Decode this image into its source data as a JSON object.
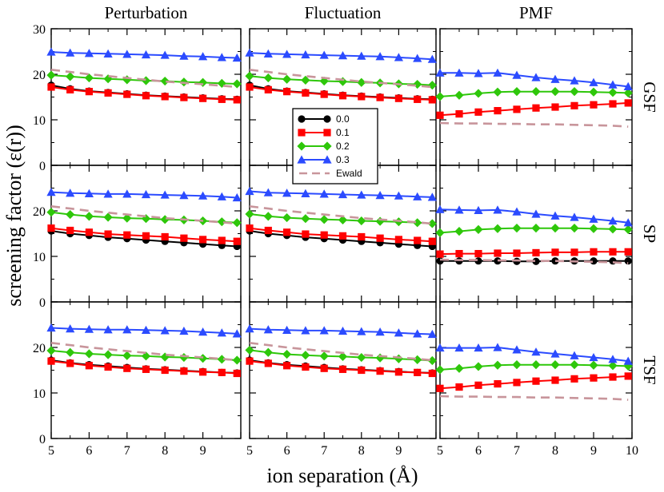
{
  "chart_data": {
    "type": "line",
    "xlabel": "ion separation (Å)",
    "ylabel": "screening factor (ε(r))",
    "columns": [
      "Perturbation",
      "Fluctuation",
      "PMF"
    ],
    "rows": [
      "GSF",
      "SP",
      "TSF"
    ],
    "xlim": [
      5,
      10
    ],
    "ylim": [
      0,
      30
    ],
    "xticks": [
      5,
      6,
      7,
      8,
      9,
      10
    ],
    "yticks": [
      0,
      10,
      20,
      30
    ],
    "legend": {
      "position": "center",
      "entries": [
        {
          "name": "0.0",
          "color": "#000000",
          "marker": "circle",
          "dash": false
        },
        {
          "name": "0.1",
          "color": "#ff0000",
          "marker": "square",
          "dash": false
        },
        {
          "name": "0.2",
          "color": "#2ec70a",
          "marker": "diamond",
          "dash": false
        },
        {
          "name": "0.3",
          "color": "#2b4bff",
          "marker": "triangle",
          "dash": false
        },
        {
          "name": "Ewald",
          "color": "#c8959b",
          "marker": "none",
          "dash": true
        }
      ]
    },
    "x": [
      5.0,
      5.5,
      6.0,
      6.5,
      7.0,
      7.5,
      8.0,
      8.5,
      9.0,
      9.5,
      9.9
    ],
    "panels": [
      {
        "row": "GSF",
        "column": "Perturbation",
        "series": [
          {
            "name": "0.0",
            "values": [
              17.6,
              16.8,
              16.3,
              16.0,
              15.7,
              15.4,
              15.2,
              15.0,
              14.8,
              14.6,
              14.5
            ]
          },
          {
            "name": "0.1",
            "values": [
              17.2,
              16.6,
              16.2,
              15.9,
              15.6,
              15.3,
              15.1,
              14.9,
              14.7,
              14.5,
              14.4
            ]
          },
          {
            "name": "0.2",
            "values": [
              19.8,
              19.5,
              19.2,
              19.0,
              18.8,
              18.6,
              18.5,
              18.3,
              18.2,
              18.0,
              17.9
            ]
          },
          {
            "name": "0.3",
            "values": [
              24.9,
              24.7,
              24.6,
              24.5,
              24.4,
              24.3,
              24.2,
              24.0,
              23.9,
              23.7,
              23.6
            ]
          },
          {
            "name": "Ewald",
            "values": [
              21.0,
              20.5,
              20.0,
              19.6,
              19.2,
              18.8,
              18.4,
              18.1,
              17.8,
              17.5,
              17.2
            ]
          }
        ]
      },
      {
        "row": "GSF",
        "column": "Fluctuation",
        "series": [
          {
            "name": "0.0",
            "values": [
              17.6,
              16.8,
              16.3,
              16.0,
              15.7,
              15.4,
              15.2,
              15.0,
              14.8,
              14.6,
              14.5
            ]
          },
          {
            "name": "0.1",
            "values": [
              17.2,
              16.6,
              16.2,
              15.9,
              15.6,
              15.3,
              15.1,
              14.9,
              14.7,
              14.5,
              14.4
            ]
          },
          {
            "name": "0.2",
            "values": [
              19.6,
              19.2,
              18.9,
              18.7,
              18.5,
              18.4,
              18.2,
              18.1,
              17.9,
              17.8,
              17.6
            ]
          },
          {
            "name": "0.3",
            "values": [
              24.7,
              24.5,
              24.4,
              24.3,
              24.2,
              24.1,
              24.0,
              23.9,
              23.7,
              23.5,
              23.3
            ]
          },
          {
            "name": "Ewald",
            "values": [
              21.0,
              20.5,
              20.0,
              19.6,
              19.2,
              18.8,
              18.4,
              18.1,
              17.8,
              17.5,
              17.2
            ]
          }
        ]
      },
      {
        "row": "GSF",
        "column": "PMF",
        "series": [
          {
            "name": "0.1",
            "values": [
              11.0,
              11.3,
              11.7,
              12.0,
              12.3,
              12.6,
              12.8,
              13.1,
              13.3,
              13.5,
              13.7
            ]
          },
          {
            "name": "0.2",
            "values": [
              15.1,
              15.4,
              15.8,
              16.1,
              16.2,
              16.2,
              16.2,
              16.2,
              16.1,
              16.0,
              15.9
            ]
          },
          {
            "name": "0.3",
            "values": [
              20.3,
              20.3,
              20.2,
              20.3,
              19.8,
              19.3,
              18.9,
              18.6,
              18.2,
              17.7,
              17.3
            ]
          },
          {
            "name": "Ewald",
            "values": [
              9.3,
              9.2,
              9.2,
              9.1,
              9.1,
              9.0,
              9.0,
              8.9,
              8.8,
              8.7,
              8.5
            ]
          }
        ]
      },
      {
        "row": "SP",
        "column": "Perturbation",
        "series": [
          {
            "name": "0.0",
            "values": [
              15.6,
              15.0,
              14.6,
              14.2,
              13.9,
              13.6,
              13.3,
              13.0,
              12.7,
              12.4,
              12.2
            ]
          },
          {
            "name": "0.1",
            "values": [
              16.2,
              15.7,
              15.3,
              14.9,
              14.7,
              14.5,
              14.3,
              14.0,
              13.7,
              13.5,
              13.3
            ]
          },
          {
            "name": "0.2",
            "values": [
              19.7,
              19.2,
              18.8,
              18.6,
              18.4,
              18.3,
              18.1,
              18.0,
              17.8,
              17.6,
              17.4
            ]
          },
          {
            "name": "0.3",
            "values": [
              24.1,
              23.9,
              23.8,
              23.7,
              23.7,
              23.6,
              23.5,
              23.4,
              23.3,
              23.1,
              22.9
            ]
          },
          {
            "name": "Ewald",
            "values": [
              21.0,
              20.5,
              20.0,
              19.6,
              19.2,
              18.8,
              18.4,
              18.1,
              17.8,
              17.5,
              17.2
            ]
          }
        ]
      },
      {
        "row": "SP",
        "column": "Fluctuation",
        "series": [
          {
            "name": "0.0",
            "values": [
              15.6,
              15.0,
              14.6,
              14.2,
              13.9,
              13.6,
              13.3,
              13.0,
              12.7,
              12.4,
              12.2
            ]
          },
          {
            "name": "0.1",
            "values": [
              16.2,
              15.7,
              15.3,
              14.9,
              14.7,
              14.5,
              14.3,
              14.0,
              13.7,
              13.5,
              13.3
            ]
          },
          {
            "name": "0.2",
            "values": [
              19.3,
              18.8,
              18.5,
              18.3,
              18.1,
              18.0,
              17.8,
              17.7,
              17.6,
              17.4,
              17.2
            ]
          },
          {
            "name": "0.3",
            "values": [
              24.3,
              24.0,
              23.9,
              23.8,
              23.7,
              23.6,
              23.5,
              23.4,
              23.3,
              23.1,
              23.0
            ]
          },
          {
            "name": "Ewald",
            "values": [
              21.0,
              20.5,
              20.0,
              19.6,
              19.2,
              18.8,
              18.4,
              18.1,
              17.8,
              17.5,
              17.2
            ]
          }
        ]
      },
      {
        "row": "SP",
        "column": "PMF",
        "series": [
          {
            "name": "0.0",
            "values": [
              9.0,
              9.0,
              9.0,
              9.0,
              8.9,
              8.9,
              9.0,
              9.0,
              9.0,
              9.0,
              9.0
            ]
          },
          {
            "name": "0.1",
            "values": [
              10.5,
              10.6,
              10.6,
              10.7,
              10.7,
              10.8,
              10.9,
              10.9,
              11.0,
              11.0,
              11.0
            ]
          },
          {
            "name": "0.2",
            "values": [
              15.2,
              15.5,
              15.9,
              16.1,
              16.2,
              16.2,
              16.2,
              16.2,
              16.1,
              16.0,
              15.9
            ]
          },
          {
            "name": "0.3",
            "values": [
              20.3,
              20.2,
              20.1,
              20.2,
              19.8,
              19.3,
              18.9,
              18.6,
              18.2,
              17.8,
              17.4
            ]
          },
          {
            "name": "Ewald",
            "values": [
              9.3,
              9.2,
              9.2,
              9.1,
              9.1,
              9.0,
              9.0,
              8.9,
              8.8,
              8.7,
              8.5
            ]
          }
        ]
      },
      {
        "row": "TSF",
        "column": "Perturbation",
        "series": [
          {
            "name": "0.0",
            "values": [
              17.2,
              16.6,
              16.2,
              15.9,
              15.6,
              15.3,
              15.1,
              14.9,
              14.7,
              14.5,
              14.4
            ]
          },
          {
            "name": "0.1",
            "values": [
              17.0,
              16.5,
              16.0,
              15.7,
              15.4,
              15.2,
              15.0,
              14.8,
              14.6,
              14.5,
              14.3
            ]
          },
          {
            "name": "0.2",
            "values": [
              19.3,
              18.9,
              18.6,
              18.4,
              18.2,
              18.1,
              17.9,
              17.8,
              17.6,
              17.4,
              17.2
            ]
          },
          {
            "name": "0.3",
            "values": [
              24.3,
              24.1,
              24.0,
              23.9,
              23.9,
              23.8,
              23.7,
              23.6,
              23.4,
              23.2,
              23.0
            ]
          },
          {
            "name": "Ewald",
            "values": [
              21.0,
              20.5,
              20.0,
              19.6,
              19.2,
              18.8,
              18.4,
              18.1,
              17.8,
              17.5,
              17.2
            ]
          }
        ]
      },
      {
        "row": "TSF",
        "column": "Fluctuation",
        "series": [
          {
            "name": "0.0",
            "values": [
              17.2,
              16.6,
              16.2,
              15.9,
              15.6,
              15.3,
              15.1,
              14.9,
              14.7,
              14.5,
              14.4
            ]
          },
          {
            "name": "0.1",
            "values": [
              17.0,
              16.5,
              16.0,
              15.7,
              15.4,
              15.2,
              15.0,
              14.8,
              14.6,
              14.5,
              14.3
            ]
          },
          {
            "name": "0.2",
            "values": [
              19.4,
              18.9,
              18.5,
              18.3,
              18.1,
              18.0,
              17.8,
              17.7,
              17.5,
              17.3,
              17.1
            ]
          },
          {
            "name": "0.3",
            "values": [
              24.1,
              23.9,
              23.8,
              23.7,
              23.7,
              23.6,
              23.5,
              23.4,
              23.2,
              23.0,
              22.9
            ]
          },
          {
            "name": "Ewald",
            "values": [
              21.0,
              20.5,
              20.0,
              19.6,
              19.2,
              18.8,
              18.4,
              18.1,
              17.8,
              17.5,
              17.2
            ]
          }
        ]
      },
      {
        "row": "TSF",
        "column": "PMF",
        "series": [
          {
            "name": "0.1",
            "values": [
              11.0,
              11.3,
              11.7,
              12.0,
              12.3,
              12.6,
              12.8,
              13.1,
              13.3,
              13.5,
              13.7
            ]
          },
          {
            "name": "0.2",
            "values": [
              15.1,
              15.4,
              15.8,
              16.1,
              16.2,
              16.2,
              16.2,
              16.2,
              16.1,
              16.0,
              15.9
            ]
          },
          {
            "name": "0.3",
            "values": [
              19.9,
              19.9,
              19.9,
              20.0,
              19.5,
              19.0,
              18.6,
              18.2,
              17.8,
              17.4,
              17.0
            ]
          },
          {
            "name": "Ewald",
            "values": [
              9.3,
              9.2,
              9.2,
              9.1,
              9.1,
              9.0,
              9.0,
              8.9,
              8.8,
              8.7,
              8.5
            ]
          }
        ]
      }
    ]
  }
}
